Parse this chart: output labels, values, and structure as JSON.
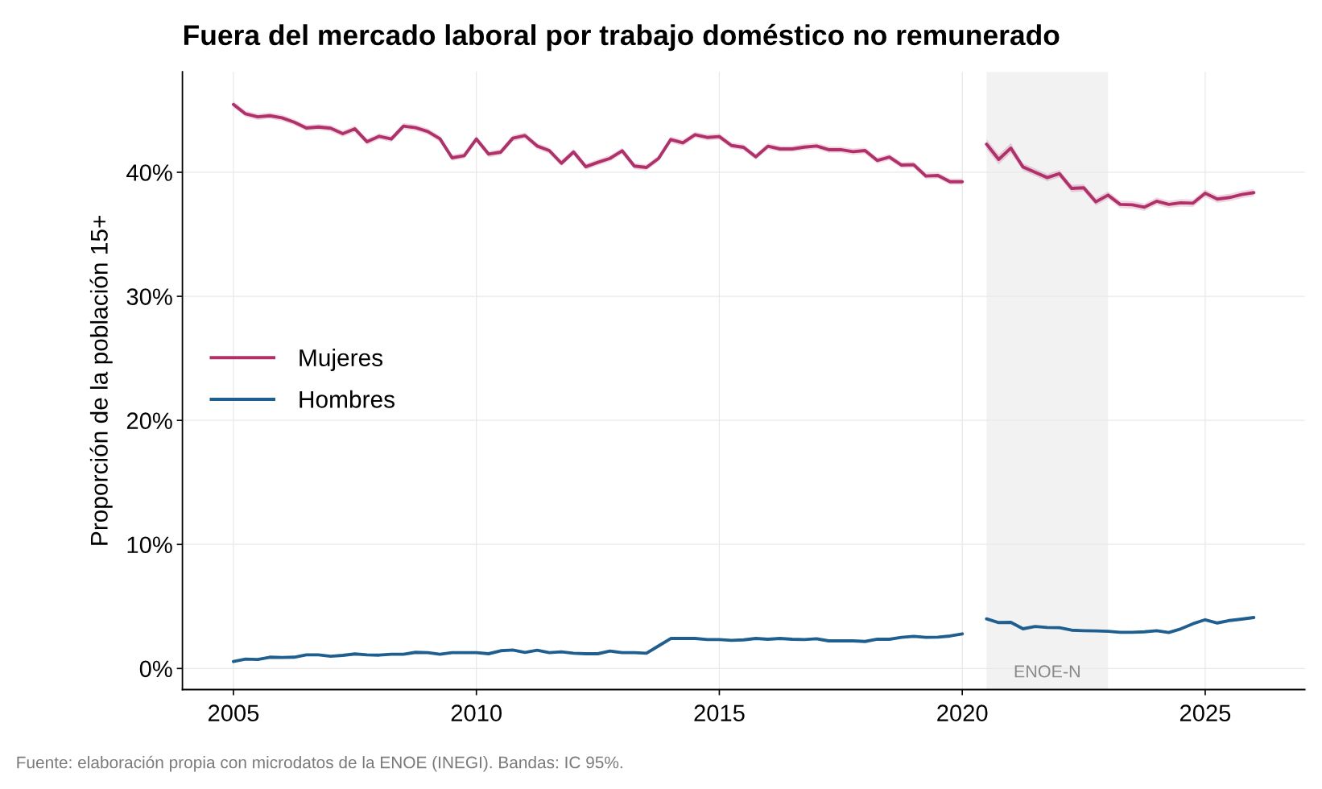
{
  "chart_data": {
    "type": "line",
    "title": "Fuera del mercado laboral por trabajo doméstico no remunerado",
    "ylabel": "Proporción de la población 15+",
    "annotations": [
      "Fuente: elaboración propia con microdatos de la ENOE (INEGI). Bandas: IC 95%."
    ],
    "x": [
      2005,
      2005.25,
      2005.5,
      2005.75,
      2006,
      2006.25,
      2006.5,
      2006.75,
      2007,
      2007.25,
      2007.5,
      2007.75,
      2008,
      2008.25,
      2008.5,
      2008.75,
      2009,
      2009.25,
      2009.5,
      2009.75,
      2010,
      2010.25,
      2010.5,
      2010.75,
      2011,
      2011.25,
      2011.5,
      2011.75,
      2012,
      2012.25,
      2012.5,
      2012.75,
      2013,
      2013.25,
      2013.5,
      2013.75,
      2014,
      2014.25,
      2014.5,
      2014.75,
      2015,
      2015.25,
      2015.5,
      2015.75,
      2016,
      2016.25,
      2016.5,
      2016.75,
      2017,
      2017.25,
      2017.5,
      2017.75,
      2018,
      2018.25,
      2018.5,
      2018.75,
      2019,
      2019.25,
      2019.5,
      2019.75,
      2020,
      2020.25,
      2020.5,
      2020.75,
      2021,
      2021.25,
      2021.5,
      2021.75,
      2022,
      2022.25,
      2022.5,
      2022.75,
      2023,
      2023.25,
      2023.5,
      2023.75,
      2024,
      2024.25,
      2024.5,
      2024.75,
      2025,
      2025.25,
      2025.5,
      2025.75,
      2026
    ],
    "series": [
      {
        "name": "Mujeres",
        "color": "#b0306a",
        "values": [
          45.47,
          44.71,
          44.47,
          44.56,
          44.39,
          44.04,
          43.57,
          43.65,
          43.55,
          43.11,
          43.5,
          42.46,
          42.9,
          42.68,
          43.72,
          43.59,
          43.29,
          42.7,
          41.17,
          41.34,
          42.68,
          41.47,
          41.62,
          42.75,
          42.96,
          42.12,
          41.75,
          40.73,
          41.64,
          40.45,
          40.8,
          41.12,
          41.73,
          40.5,
          40.39,
          41.12,
          42.64,
          42.38,
          43.03,
          42.81,
          42.88,
          42.16,
          42.01,
          41.25,
          42.1,
          41.88,
          41.88,
          42.03,
          42.12,
          41.82,
          41.82,
          41.66,
          41.75,
          40.95,
          41.23,
          40.58,
          40.61,
          39.7,
          39.74,
          39.24,
          39.24,
          null,
          42.27,
          41.04,
          41.95,
          40.43,
          40.0,
          39.57,
          39.89,
          38.7,
          38.75,
          37.62,
          38.16,
          37.41,
          37.38,
          37.19,
          37.67,
          37.41,
          37.54,
          37.51,
          38.31,
          37.84,
          37.97,
          38.21,
          38.36
        ],
        "lower": [
          45.22,
          44.46,
          44.22,
          44.31,
          44.14,
          43.79,
          43.32,
          43.4,
          43.3,
          42.86,
          43.25,
          42.21,
          42.65,
          42.43,
          43.47,
          43.34,
          43.04,
          42.45,
          40.92,
          41.09,
          42.43,
          41.22,
          41.37,
          42.5,
          42.71,
          41.87,
          41.5,
          40.48,
          41.39,
          40.2,
          40.55,
          40.87,
          41.48,
          40.25,
          40.14,
          40.87,
          42.39,
          42.13,
          42.78,
          42.56,
          42.63,
          41.91,
          41.76,
          41.0,
          41.85,
          41.63,
          41.63,
          41.78,
          41.87,
          41.57,
          41.57,
          41.41,
          41.5,
          40.7,
          40.98,
          40.33,
          40.36,
          39.45,
          39.49,
          38.99,
          38.99,
          null,
          41.87,
          40.64,
          41.55,
          40.13,
          39.7,
          39.27,
          39.59,
          38.4,
          38.45,
          37.32,
          37.86,
          37.11,
          37.08,
          36.89,
          37.37,
          37.11,
          37.24,
          37.21,
          38.01,
          37.54,
          37.67,
          37.91,
          38.06
        ],
        "upper": [
          45.72,
          44.96,
          44.72,
          44.81,
          44.64,
          44.29,
          43.82,
          43.9,
          43.8,
          43.36,
          43.75,
          42.71,
          43.15,
          42.93,
          43.97,
          43.84,
          43.54,
          42.95,
          41.42,
          41.59,
          42.93,
          41.72,
          41.87,
          43.0,
          43.21,
          42.37,
          42.0,
          40.98,
          41.89,
          40.7,
          41.05,
          41.37,
          41.98,
          40.75,
          40.64,
          41.37,
          42.89,
          42.63,
          43.28,
          43.06,
          43.13,
          42.41,
          42.26,
          41.5,
          42.35,
          42.13,
          42.13,
          42.28,
          42.37,
          42.07,
          42.07,
          41.91,
          42.0,
          41.2,
          41.48,
          40.83,
          40.86,
          39.95,
          39.99,
          39.49,
          39.49,
          null,
          42.67,
          41.44,
          42.35,
          40.73,
          40.3,
          39.87,
          40.19,
          39.0,
          39.05,
          37.92,
          38.46,
          37.71,
          37.68,
          37.49,
          37.97,
          37.71,
          37.84,
          37.81,
          38.61,
          38.14,
          38.27,
          38.51,
          38.66
        ]
      },
      {
        "name": "Hombres",
        "color": "#1f5f8f",
        "values": [
          0.56,
          0.76,
          0.73,
          0.91,
          0.89,
          0.91,
          1.1,
          1.1,
          0.99,
          1.06,
          1.17,
          1.1,
          1.08,
          1.15,
          1.15,
          1.3,
          1.28,
          1.15,
          1.28,
          1.28,
          1.28,
          1.19,
          1.43,
          1.49,
          1.3,
          1.47,
          1.28,
          1.34,
          1.23,
          1.19,
          1.19,
          1.41,
          1.28,
          1.28,
          1.23,
          1.82,
          2.42,
          2.42,
          2.42,
          2.33,
          2.33,
          2.27,
          2.31,
          2.42,
          2.36,
          2.42,
          2.36,
          2.33,
          2.4,
          2.23,
          2.23,
          2.23,
          2.18,
          2.36,
          2.36,
          2.51,
          2.59,
          2.51,
          2.53,
          2.62,
          2.79,
          null,
          4.0,
          3.7,
          3.72,
          3.2,
          3.39,
          3.31,
          3.29,
          3.09,
          3.05,
          3.03,
          3.0,
          2.92,
          2.92,
          2.96,
          3.05,
          2.9,
          3.2,
          3.61,
          3.93,
          3.67,
          3.87,
          3.98,
          4.11
        ]
      }
    ],
    "bands": [
      {
        "axis": "x",
        "from": 2020.5,
        "to": 2023,
        "label": "ENOE-N",
        "color": "#f2f2f2"
      }
    ],
    "xlim": [
      2003.95,
      2027.05
    ],
    "xticks": [
      2005,
      2010,
      2015,
      2020,
      2025
    ],
    "ylim": [
      -1.7,
      48.1
    ],
    "yticks": [
      {
        "value": 0,
        "label": "0%"
      },
      {
        "value": 10,
        "label": "10%"
      },
      {
        "value": 20,
        "label": "20%"
      },
      {
        "value": 30,
        "label": "30%"
      },
      {
        "value": 40,
        "label": "40%"
      }
    ],
    "grid": true,
    "legend": "left"
  }
}
